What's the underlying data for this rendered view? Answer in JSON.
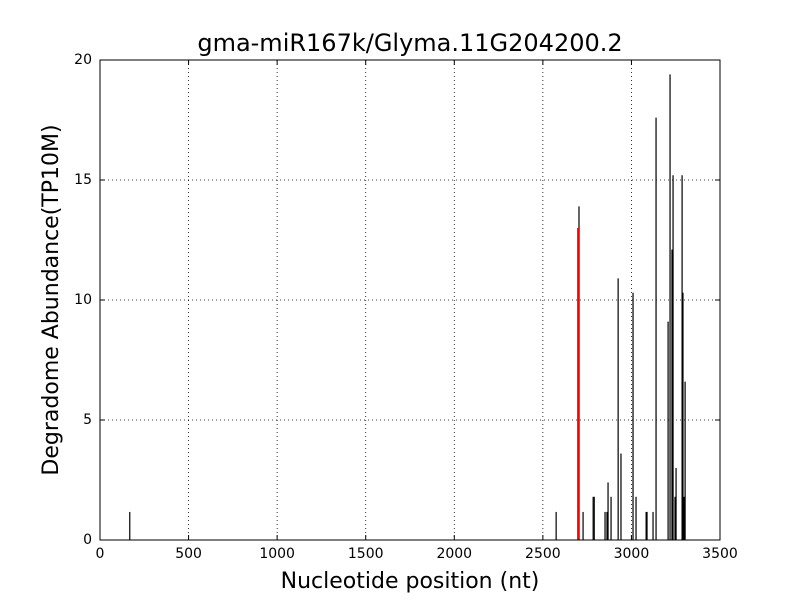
{
  "chart_data": {
    "type": "stem",
    "title": "gma-miR167k/Glyma.11G204200.2",
    "x_label": "Nucleotide position (nt)",
    "y_label": "Degradome Abundance(TP10M)",
    "xlim": [
      0,
      3500
    ],
    "ylim": [
      0,
      20
    ],
    "xticks": [
      0,
      500,
      1000,
      1500,
      2000,
      2500,
      3000,
      3500
    ],
    "yticks": [
      0,
      5,
      10,
      15,
      20
    ],
    "grid": true,
    "series": [
      {
        "color": "#000000",
        "x": [
          168,
          2575,
          2704,
          2727,
          2784,
          2790,
          2851,
          2862,
          2868,
          2885,
          2925,
          2941,
          3009,
          3026,
          3083,
          3088,
          3122,
          3139,
          3207,
          3218,
          3229,
          3235,
          3246,
          3252,
          3286,
          3291,
          3297,
          3303
        ],
        "values": [
          1.17,
          1.17,
          13.9,
          1.17,
          1.8,
          1.8,
          1.17,
          1.17,
          2.4,
          1.8,
          10.9,
          3.6,
          10.3,
          1.8,
          1.17,
          1.17,
          1.17,
          17.6,
          9.1,
          19.4,
          12.1,
          15.2,
          1.8,
          3.0,
          15.2,
          10.3,
          1.8,
          6.6
        ]
      },
      {
        "color": "#ff0000",
        "x": [
          2699
        ],
        "values": [
          13.0
        ]
      }
    ]
  }
}
